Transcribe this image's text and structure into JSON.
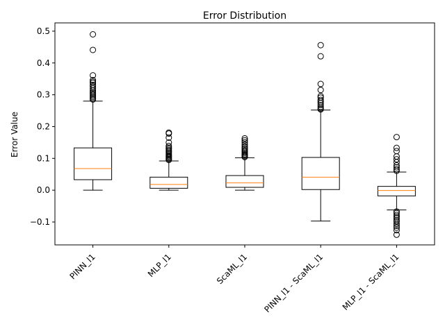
{
  "chart_data": {
    "type": "box",
    "title": "Error Distribution",
    "xlabel": "",
    "ylabel": "Error Value",
    "ylim": [
      -0.172,
      0.526
    ],
    "yticks": [
      {
        "value": -0.1,
        "label": "−0.1"
      },
      {
        "value": 0.0,
        "label": "0.0"
      },
      {
        "value": 0.1,
        "label": "0.1"
      },
      {
        "value": 0.2,
        "label": "0.2"
      },
      {
        "value": 0.3,
        "label": "0.3"
      },
      {
        "value": 0.4,
        "label": "0.4"
      },
      {
        "value": 0.5,
        "label": "0.5"
      }
    ],
    "grid": false,
    "legend": "none",
    "xtick_rotation": 45,
    "colors": {
      "box": "#000000",
      "median": "#ff7f0e",
      "flier": "#000000"
    },
    "categories": [
      "PINN_l1",
      "MLP_l1",
      "ScaML_l1",
      "PINN_l1 - ScaML_l1",
      "MLP_l1 - ScaML_l1"
    ],
    "boxes": [
      {
        "category": "PINN_l1",
        "whisker_low": 0.0,
        "q1": 0.033,
        "median": 0.068,
        "q3": 0.133,
        "whisker_high": 0.28,
        "fliers": [
          0.49,
          0.441,
          0.361,
          0.346,
          0.341,
          0.337,
          0.331,
          0.326,
          0.32,
          0.314,
          0.309,
          0.305,
          0.301,
          0.297,
          0.293,
          0.289,
          0.285
        ]
      },
      {
        "category": "MLP_l1",
        "whisker_low": 0.0,
        "q1": 0.006,
        "median": 0.018,
        "q3": 0.041,
        "whisker_high": 0.092,
        "fliers": [
          0.181,
          0.178,
          0.165,
          0.15,
          0.139,
          0.134,
          0.13,
          0.126,
          0.122,
          0.118,
          0.114,
          0.11,
          0.107,
          0.104,
          0.101,
          0.098,
          0.095
        ]
      },
      {
        "category": "ScaML_l1",
        "whisker_low": 0.0,
        "q1": 0.009,
        "median": 0.023,
        "q3": 0.046,
        "whisker_high": 0.102,
        "fliers": [
          0.163,
          0.157,
          0.151,
          0.144,
          0.138,
          0.133,
          0.129,
          0.125,
          0.121,
          0.117,
          0.113,
          0.11,
          0.107,
          0.104
        ]
      },
      {
        "category": "PINN_l1 - ScaML_l1",
        "whisker_low": -0.097,
        "q1": 0.002,
        "median": 0.041,
        "q3": 0.103,
        "whisker_high": 0.252,
        "fliers": [
          0.456,
          0.421,
          0.334,
          0.315,
          0.296,
          0.291,
          0.284,
          0.279,
          0.274,
          0.268,
          0.262,
          0.257,
          0.254
        ]
      },
      {
        "category": "MLP_l1 - ScaML_l1",
        "whisker_low": -0.062,
        "q1": -0.018,
        "median": -0.001,
        "q3": 0.012,
        "whisker_high": 0.057,
        "fliers": [
          0.167,
          0.133,
          0.123,
          0.106,
          0.097,
          0.088,
          0.078,
          0.072,
          0.066,
          0.061,
          -0.067,
          -0.072,
          -0.078,
          -0.083,
          -0.088,
          -0.094,
          -0.099,
          -0.106,
          -0.112,
          -0.118,
          -0.126,
          -0.14
        ]
      }
    ]
  }
}
